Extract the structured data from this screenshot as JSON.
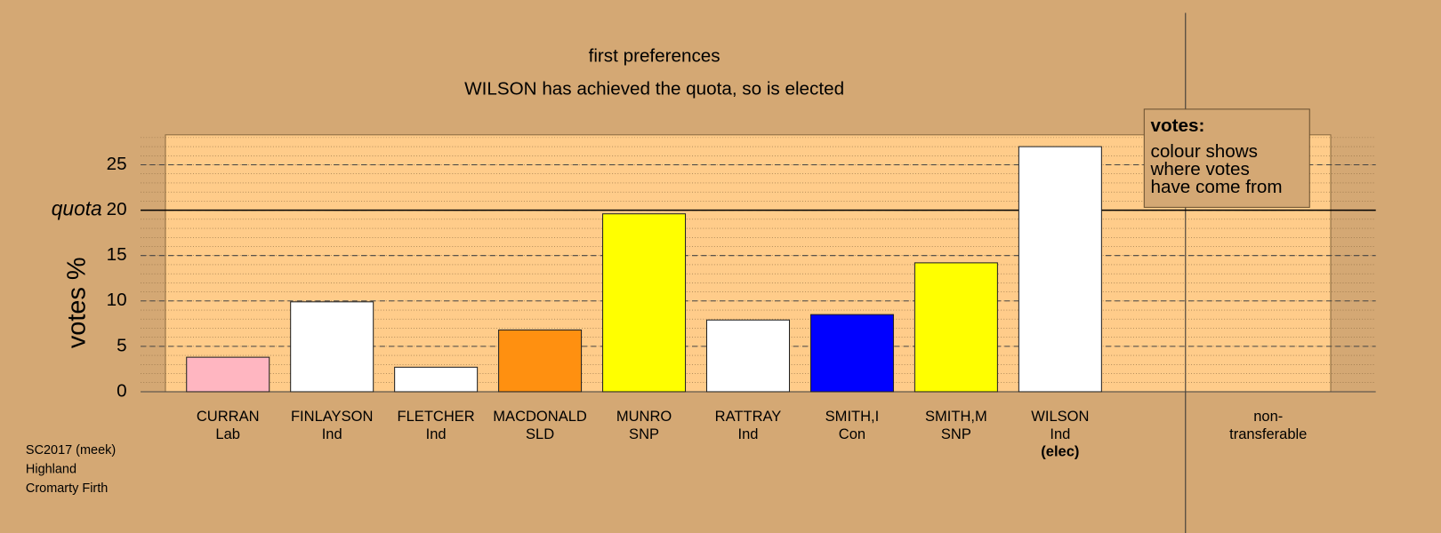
{
  "chart_data": {
    "type": "bar",
    "title": "first preferences",
    "subtitle": "WILSON has achieved the quota, so is elected",
    "ylabel": "votes %",
    "categories": [
      "CURRAN",
      "FINLAYSON",
      "FLETCHER",
      "MACDONALD",
      "MUNRO",
      "RATTRAY",
      "SMITH,I",
      "SMITH,M",
      "WILSON"
    ],
    "parties": [
      "Lab",
      "Ind",
      "Ind",
      "SLD",
      "SNP",
      "Ind",
      "Con",
      "SNP",
      "Ind"
    ],
    "category_notes": [
      null,
      null,
      null,
      null,
      null,
      null,
      null,
      null,
      "(elec)"
    ],
    "values": [
      3.8,
      9.9,
      2.7,
      6.8,
      19.6,
      7.9,
      8.5,
      14.2,
      27.0
    ],
    "colors": [
      "#ffb6c1",
      "#ffffff",
      "#ffffff",
      "#ff9010",
      "#ffff00",
      "#ffffff",
      "#0000ff",
      "#ffff00",
      "#ffffff"
    ],
    "ylim": [
      0,
      28.3
    ],
    "yticks": [
      0,
      5,
      10,
      15,
      20,
      25
    ],
    "quota": {
      "value": 20,
      "label": "quota"
    },
    "non_transferable_label": [
      "non-",
      "transferable"
    ],
    "legend": {
      "title": "votes:",
      "text": [
        "colour shows",
        "where votes",
        "have come from"
      ]
    },
    "grid": true
  },
  "footer": [
    "SC2017 (meek)",
    "Highland",
    "Cromarty Firth"
  ]
}
